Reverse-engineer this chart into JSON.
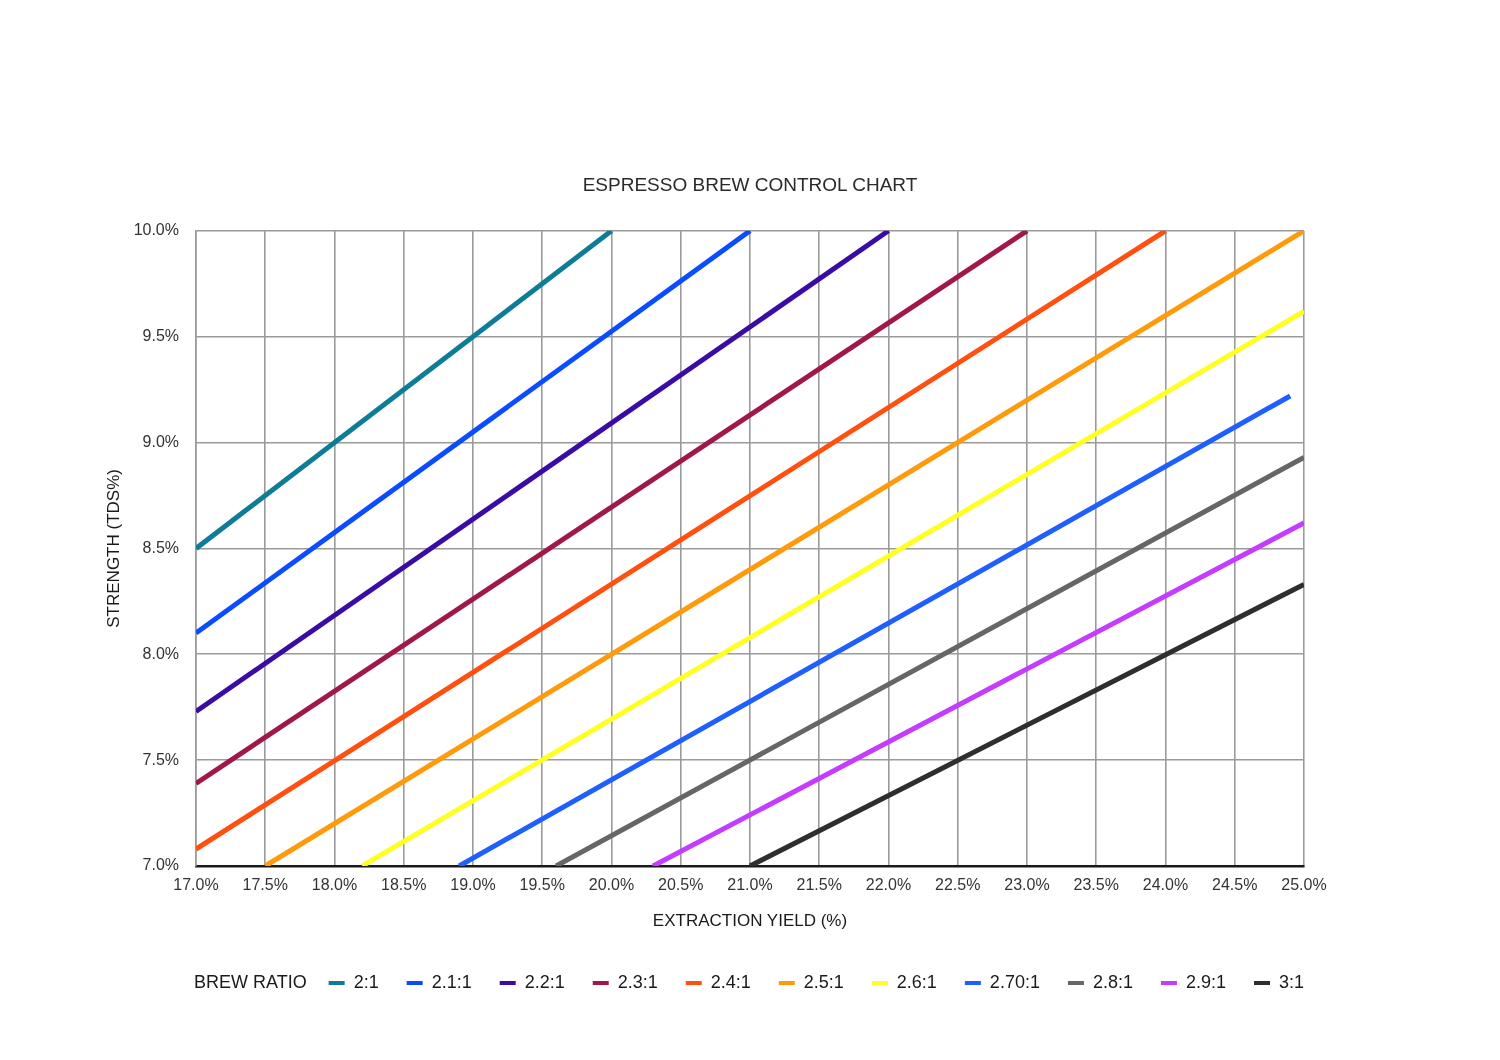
{
  "chart_data": {
    "type": "line",
    "title": "ESPRESSO BREW CONTROL CHART",
    "xlabel": "EXTRACTION YIELD (%)",
    "ylabel": "STRENGTH (TDS%)",
    "legend_title": "BREW RATIO",
    "legend": "bottom",
    "grid": true,
    "marker": "none",
    "xlim": [
      17,
      25
    ],
    "ylim": [
      7,
      10
    ],
    "xticks": [
      {
        "value": 17,
        "label": "17.0%"
      },
      {
        "value": 17.5,
        "label": "17.5%"
      },
      {
        "value": 18,
        "label": "18.0%"
      },
      {
        "value": 18.5,
        "label": "18.5%"
      },
      {
        "value": 19,
        "label": "19.0%"
      },
      {
        "value": 19.5,
        "label": "19.5%"
      },
      {
        "value": 20,
        "label": "20.0%"
      },
      {
        "value": 20.5,
        "label": "20.5%"
      },
      {
        "value": 21,
        "label": "21.0%"
      },
      {
        "value": 21.5,
        "label": "21.5%"
      },
      {
        "value": 22,
        "label": "22.0%"
      },
      {
        "value": 22.5,
        "label": "22.5%"
      },
      {
        "value": 23,
        "label": "23.0%"
      },
      {
        "value": 23.5,
        "label": "23.5%"
      },
      {
        "value": 24,
        "label": "24.0%"
      },
      {
        "value": 24.5,
        "label": "24.5%"
      },
      {
        "value": 25,
        "label": "25.0%"
      }
    ],
    "yticks": [
      {
        "value": 7,
        "label": "7.0%"
      },
      {
        "value": 7.5,
        "label": "7.5%"
      },
      {
        "value": 8,
        "label": "8.0%"
      },
      {
        "value": 8.5,
        "label": "8.5%"
      },
      {
        "value": 9,
        "label": "9.0%"
      },
      {
        "value": 9.5,
        "label": "9.5%"
      },
      {
        "value": 10,
        "label": "10.0%"
      }
    ],
    "series": [
      {
        "name": "2:1",
        "color": "#0e7c96",
        "x": [
          17,
          20
        ],
        "values": [
          8.5,
          10
        ]
      },
      {
        "name": "2.1:1",
        "color": "#0a4cff",
        "x": [
          17,
          21
        ],
        "values": [
          8.1,
          10
        ]
      },
      {
        "name": "2.2:1",
        "color": "#3a0ca3",
        "x": [
          17,
          22
        ],
        "values": [
          7.73,
          10
        ]
      },
      {
        "name": "2.3:1",
        "color": "#a0174a",
        "x": [
          17,
          23
        ],
        "values": [
          7.39,
          10
        ]
      },
      {
        "name": "2.4:1",
        "color": "#ff5010",
        "x": [
          17,
          24
        ],
        "values": [
          7.08,
          10
        ]
      },
      {
        "name": "2.5:1",
        "color": "#ff9a0a",
        "x": [
          17.5,
          25
        ],
        "values": [
          7,
          10
        ]
      },
      {
        "name": "2.6:1",
        "color": "#ffff26",
        "x": [
          18.2,
          25
        ],
        "values": [
          7,
          9.62
        ]
      },
      {
        "name": "2.70:1",
        "color": "#1f5fff",
        "x": [
          18.9,
          24.9
        ],
        "values": [
          7,
          9.22
        ]
      },
      {
        "name": "2.8:1",
        "color": "#666666",
        "x": [
          19.6,
          25
        ],
        "values": [
          7,
          8.93
        ]
      },
      {
        "name": "2.9:1",
        "color": "#c43cff",
        "x": [
          20.3,
          25
        ],
        "values": [
          7,
          8.62
        ]
      },
      {
        "name": "3:1",
        "color": "#2e2e2e",
        "x": [
          21,
          25
        ],
        "values": [
          7,
          8.33
        ]
      }
    ]
  }
}
